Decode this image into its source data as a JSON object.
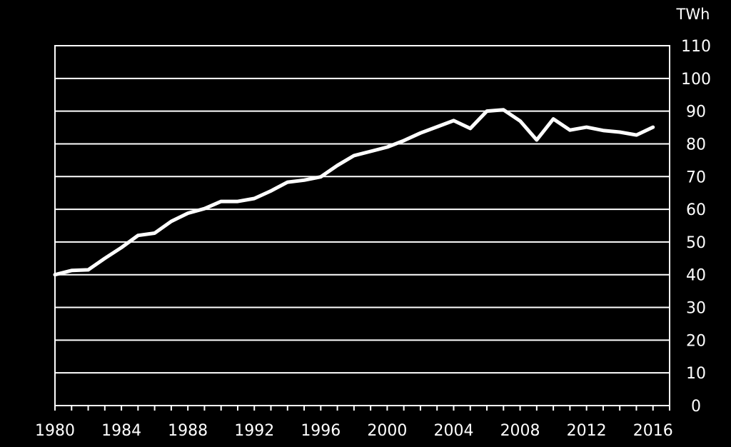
{
  "chart_data": {
    "type": "line",
    "unit_label": "TWh",
    "xlabel": "",
    "ylabel": "",
    "xlim": [
      1980,
      2017
    ],
    "ylim": [
      0,
      110
    ],
    "y_ticks": [
      0,
      10,
      20,
      30,
      40,
      50,
      60,
      70,
      80,
      90,
      100,
      110
    ],
    "x_ticks": [
      1980,
      1984,
      1988,
      1992,
      1996,
      2000,
      2004,
      2008,
      2012,
      2016
    ],
    "grid": true,
    "y_axis_side": "right",
    "series": [
      {
        "x": [
          1980,
          1981,
          1982,
          1983,
          1984,
          1985,
          1986,
          1987,
          1988,
          1989,
          1990,
          1991,
          1992,
          1993,
          1994,
          1995,
          1996,
          1997,
          1998,
          1999,
          2000,
          2001,
          2002,
          2003,
          2004,
          2005,
          2006,
          2007,
          2008,
          2009,
          2010,
          2011,
          2012,
          2013,
          2014,
          2015,
          2016
        ],
        "values": [
          40.0,
          41.3,
          41.5,
          45.0,
          48.3,
          52.0,
          52.7,
          56.3,
          58.8,
          60.2,
          62.4,
          62.4,
          63.3,
          65.6,
          68.3,
          68.9,
          69.9,
          73.4,
          76.4,
          77.7,
          79.0,
          81.0,
          83.3,
          85.2,
          87.1,
          84.7,
          90.0,
          90.4,
          87.0,
          81.2,
          87.6,
          84.2,
          85.1,
          84.1,
          83.6,
          82.7,
          85.1
        ]
      }
    ],
    "colors": {
      "background": "#000000",
      "line": "#ffffff",
      "grid": "#ffffff",
      "text": "#ffffff"
    }
  }
}
